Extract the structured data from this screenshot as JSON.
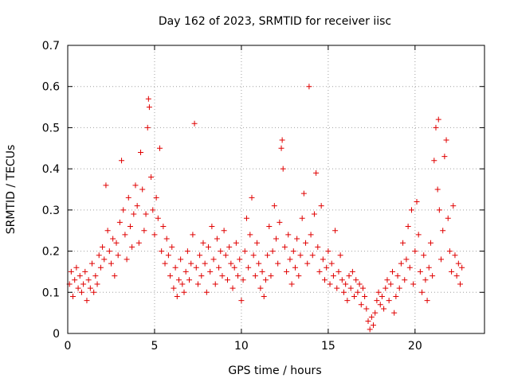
{
  "chart_data": {
    "type": "scatter",
    "title": "Day 162 of 2023, SRMTID for receiver iisc",
    "xlabel": "GPS time / hours",
    "ylabel": "SRMTID / TECUs",
    "xlim": [
      0,
      24
    ],
    "ylim": [
      0,
      0.7
    ],
    "xticks": [
      0,
      5,
      10,
      15,
      20
    ],
    "yticks": [
      0,
      0.1,
      0.2,
      0.3,
      0.4,
      0.5,
      0.6,
      0.7
    ],
    "x_tick_labels": [
      "0",
      "5",
      "10",
      "15",
      "20"
    ],
    "y_tick_labels": [
      "0",
      "0.1",
      "0.2",
      "0.3",
      "0.4",
      "0.5",
      "0.6",
      "0.7"
    ],
    "grid": true,
    "marker": "plus",
    "color": "#e00000",
    "series": [
      {
        "name": "SRMTID",
        "points": [
          [
            0.1,
            0.12
          ],
          [
            0.2,
            0.15
          ],
          [
            0.3,
            0.09
          ],
          [
            0.4,
            0.13
          ],
          [
            0.5,
            0.16
          ],
          [
            0.6,
            0.11
          ],
          [
            0.7,
            0.14
          ],
          [
            0.8,
            0.1
          ],
          [
            0.9,
            0.12
          ],
          [
            1.0,
            0.15
          ],
          [
            1.1,
            0.08
          ],
          [
            1.2,
            0.13
          ],
          [
            1.3,
            0.11
          ],
          [
            1.4,
            0.17
          ],
          [
            1.5,
            0.1
          ],
          [
            1.6,
            0.14
          ],
          [
            1.7,
            0.12
          ],
          [
            1.8,
            0.19
          ],
          [
            1.9,
            0.16
          ],
          [
            2.0,
            0.21
          ],
          [
            2.1,
            0.18
          ],
          [
            2.2,
            0.36
          ],
          [
            2.3,
            0.25
          ],
          [
            2.4,
            0.2
          ],
          [
            2.5,
            0.17
          ],
          [
            2.6,
            0.23
          ],
          [
            2.7,
            0.14
          ],
          [
            2.8,
            0.22
          ],
          [
            2.9,
            0.19
          ],
          [
            3.0,
            0.27
          ],
          [
            3.1,
            0.42
          ],
          [
            3.2,
            0.3
          ],
          [
            3.3,
            0.24
          ],
          [
            3.4,
            0.18
          ],
          [
            3.5,
            0.33
          ],
          [
            3.6,
            0.26
          ],
          [
            3.7,
            0.21
          ],
          [
            3.8,
            0.29
          ],
          [
            3.9,
            0.36
          ],
          [
            4.0,
            0.31
          ],
          [
            4.1,
            0.22
          ],
          [
            4.2,
            0.44
          ],
          [
            4.3,
            0.35
          ],
          [
            4.4,
            0.25
          ],
          [
            4.5,
            0.29
          ],
          [
            4.6,
            0.5
          ],
          [
            4.65,
            0.57
          ],
          [
            4.7,
            0.55
          ],
          [
            4.8,
            0.38
          ],
          [
            4.9,
            0.3
          ],
          [
            5.0,
            0.24
          ],
          [
            5.1,
            0.33
          ],
          [
            5.2,
            0.28
          ],
          [
            5.3,
            0.45
          ],
          [
            5.4,
            0.2
          ],
          [
            5.5,
            0.26
          ],
          [
            5.6,
            0.17
          ],
          [
            5.7,
            0.23
          ],
          [
            5.8,
            0.19
          ],
          [
            5.9,
            0.14
          ],
          [
            6.0,
            0.21
          ],
          [
            6.1,
            0.11
          ],
          [
            6.2,
            0.16
          ],
          [
            6.3,
            0.09
          ],
          [
            6.4,
            0.13
          ],
          [
            6.5,
            0.18
          ],
          [
            6.6,
            0.12
          ],
          [
            6.7,
            0.1
          ],
          [
            6.8,
            0.15
          ],
          [
            6.9,
            0.2
          ],
          [
            7.0,
            0.13
          ],
          [
            7.1,
            0.17
          ],
          [
            7.2,
            0.24
          ],
          [
            7.3,
            0.51
          ],
          [
            7.4,
            0.16
          ],
          [
            7.5,
            0.12
          ],
          [
            7.6,
            0.19
          ],
          [
            7.7,
            0.14
          ],
          [
            7.8,
            0.22
          ],
          [
            7.9,
            0.17
          ],
          [
            8.0,
            0.1
          ],
          [
            8.1,
            0.21
          ],
          [
            8.2,
            0.15
          ],
          [
            8.3,
            0.26
          ],
          [
            8.4,
            0.18
          ],
          [
            8.5,
            0.12
          ],
          [
            8.6,
            0.23
          ],
          [
            8.7,
            0.16
          ],
          [
            8.8,
            0.2
          ],
          [
            8.9,
            0.14
          ],
          [
            9.0,
            0.25
          ],
          [
            9.1,
            0.19
          ],
          [
            9.2,
            0.13
          ],
          [
            9.3,
            0.21
          ],
          [
            9.4,
            0.17
          ],
          [
            9.5,
            0.11
          ],
          [
            9.6,
            0.16
          ],
          [
            9.7,
            0.22
          ],
          [
            9.8,
            0.14
          ],
          [
            9.9,
            0.18
          ],
          [
            10.0,
            0.08
          ],
          [
            10.1,
            0.13
          ],
          [
            10.2,
            0.2
          ],
          [
            10.3,
            0.28
          ],
          [
            10.4,
            0.16
          ],
          [
            10.5,
            0.24
          ],
          [
            10.6,
            0.33
          ],
          [
            10.7,
            0.19
          ],
          [
            10.8,
            0.14
          ],
          [
            10.9,
            0.22
          ],
          [
            11.0,
            0.17
          ],
          [
            11.1,
            0.11
          ],
          [
            11.2,
            0.15
          ],
          [
            11.3,
            0.09
          ],
          [
            11.4,
            0.13
          ],
          [
            11.5,
            0.19
          ],
          [
            11.6,
            0.26
          ],
          [
            11.7,
            0.14
          ],
          [
            11.8,
            0.2
          ],
          [
            11.9,
            0.31
          ],
          [
            12.0,
            0.23
          ],
          [
            12.1,
            0.17
          ],
          [
            12.2,
            0.27
          ],
          [
            12.3,
            0.45
          ],
          [
            12.35,
            0.47
          ],
          [
            12.4,
            0.4
          ],
          [
            12.5,
            0.21
          ],
          [
            12.6,
            0.15
          ],
          [
            12.7,
            0.24
          ],
          [
            12.8,
            0.18
          ],
          [
            12.9,
            0.12
          ],
          [
            13.0,
            0.2
          ],
          [
            13.1,
            0.16
          ],
          [
            13.2,
            0.23
          ],
          [
            13.3,
            0.14
          ],
          [
            13.4,
            0.19
          ],
          [
            13.5,
            0.28
          ],
          [
            13.6,
            0.34
          ],
          [
            13.7,
            0.22
          ],
          [
            13.8,
            0.17
          ],
          [
            13.9,
            0.6
          ],
          [
            14.0,
            0.24
          ],
          [
            14.1,
            0.19
          ],
          [
            14.2,
            0.29
          ],
          [
            14.3,
            0.39
          ],
          [
            14.4,
            0.21
          ],
          [
            14.5,
            0.15
          ],
          [
            14.6,
            0.31
          ],
          [
            14.7,
            0.18
          ],
          [
            14.8,
            0.13
          ],
          [
            14.9,
            0.16
          ],
          [
            15.0,
            0.2
          ],
          [
            15.1,
            0.12
          ],
          [
            15.2,
            0.17
          ],
          [
            15.3,
            0.14
          ],
          [
            15.4,
            0.25
          ],
          [
            15.5,
            0.11
          ],
          [
            15.6,
            0.15
          ],
          [
            15.7,
            0.19
          ],
          [
            15.8,
            0.13
          ],
          [
            15.9,
            0.1
          ],
          [
            16.0,
            0.12
          ],
          [
            16.1,
            0.08
          ],
          [
            16.2,
            0.14
          ],
          [
            16.3,
            0.11
          ],
          [
            16.4,
            0.15
          ],
          [
            16.5,
            0.09
          ],
          [
            16.6,
            0.13
          ],
          [
            16.7,
            0.1
          ],
          [
            16.8,
            0.12
          ],
          [
            16.9,
            0.07
          ],
          [
            17.0,
            0.11
          ],
          [
            17.1,
            0.09
          ],
          [
            17.2,
            0.06
          ],
          [
            17.3,
            0.03
          ],
          [
            17.4,
            0.01
          ],
          [
            17.5,
            0.04
          ],
          [
            17.6,
            0.02
          ],
          [
            17.7,
            0.05
          ],
          [
            17.8,
            0.08
          ],
          [
            17.9,
            0.1
          ],
          [
            18.0,
            0.07
          ],
          [
            18.1,
            0.09
          ],
          [
            18.2,
            0.06
          ],
          [
            18.3,
            0.11
          ],
          [
            18.4,
            0.13
          ],
          [
            18.5,
            0.08
          ],
          [
            18.6,
            0.12
          ],
          [
            18.7,
            0.15
          ],
          [
            18.8,
            0.05
          ],
          [
            18.9,
            0.09
          ],
          [
            19.0,
            0.14
          ],
          [
            19.1,
            0.11
          ],
          [
            19.2,
            0.17
          ],
          [
            19.3,
            0.22
          ],
          [
            19.4,
            0.13
          ],
          [
            19.5,
            0.18
          ],
          [
            19.6,
            0.26
          ],
          [
            19.7,
            0.16
          ],
          [
            19.8,
            0.3
          ],
          [
            19.9,
            0.12
          ],
          [
            20.0,
            0.2
          ],
          [
            20.1,
            0.32
          ],
          [
            20.2,
            0.24
          ],
          [
            20.3,
            0.15
          ],
          [
            20.4,
            0.1
          ],
          [
            20.5,
            0.19
          ],
          [
            20.6,
            0.13
          ],
          [
            20.7,
            0.08
          ],
          [
            20.8,
            0.16
          ],
          [
            20.9,
            0.22
          ],
          [
            21.0,
            0.14
          ],
          [
            21.1,
            0.42
          ],
          [
            21.2,
            0.5
          ],
          [
            21.3,
            0.35
          ],
          [
            21.35,
            0.52
          ],
          [
            21.4,
            0.3
          ],
          [
            21.5,
            0.18
          ],
          [
            21.6,
            0.25
          ],
          [
            21.7,
            0.43
          ],
          [
            21.8,
            0.47
          ],
          [
            21.9,
            0.28
          ],
          [
            22.0,
            0.2
          ],
          [
            22.1,
            0.15
          ],
          [
            22.2,
            0.31
          ],
          [
            22.3,
            0.19
          ],
          [
            22.4,
            0.14
          ],
          [
            22.5,
            0.17
          ],
          [
            22.6,
            0.12
          ],
          [
            22.7,
            0.16
          ]
        ]
      }
    ]
  }
}
